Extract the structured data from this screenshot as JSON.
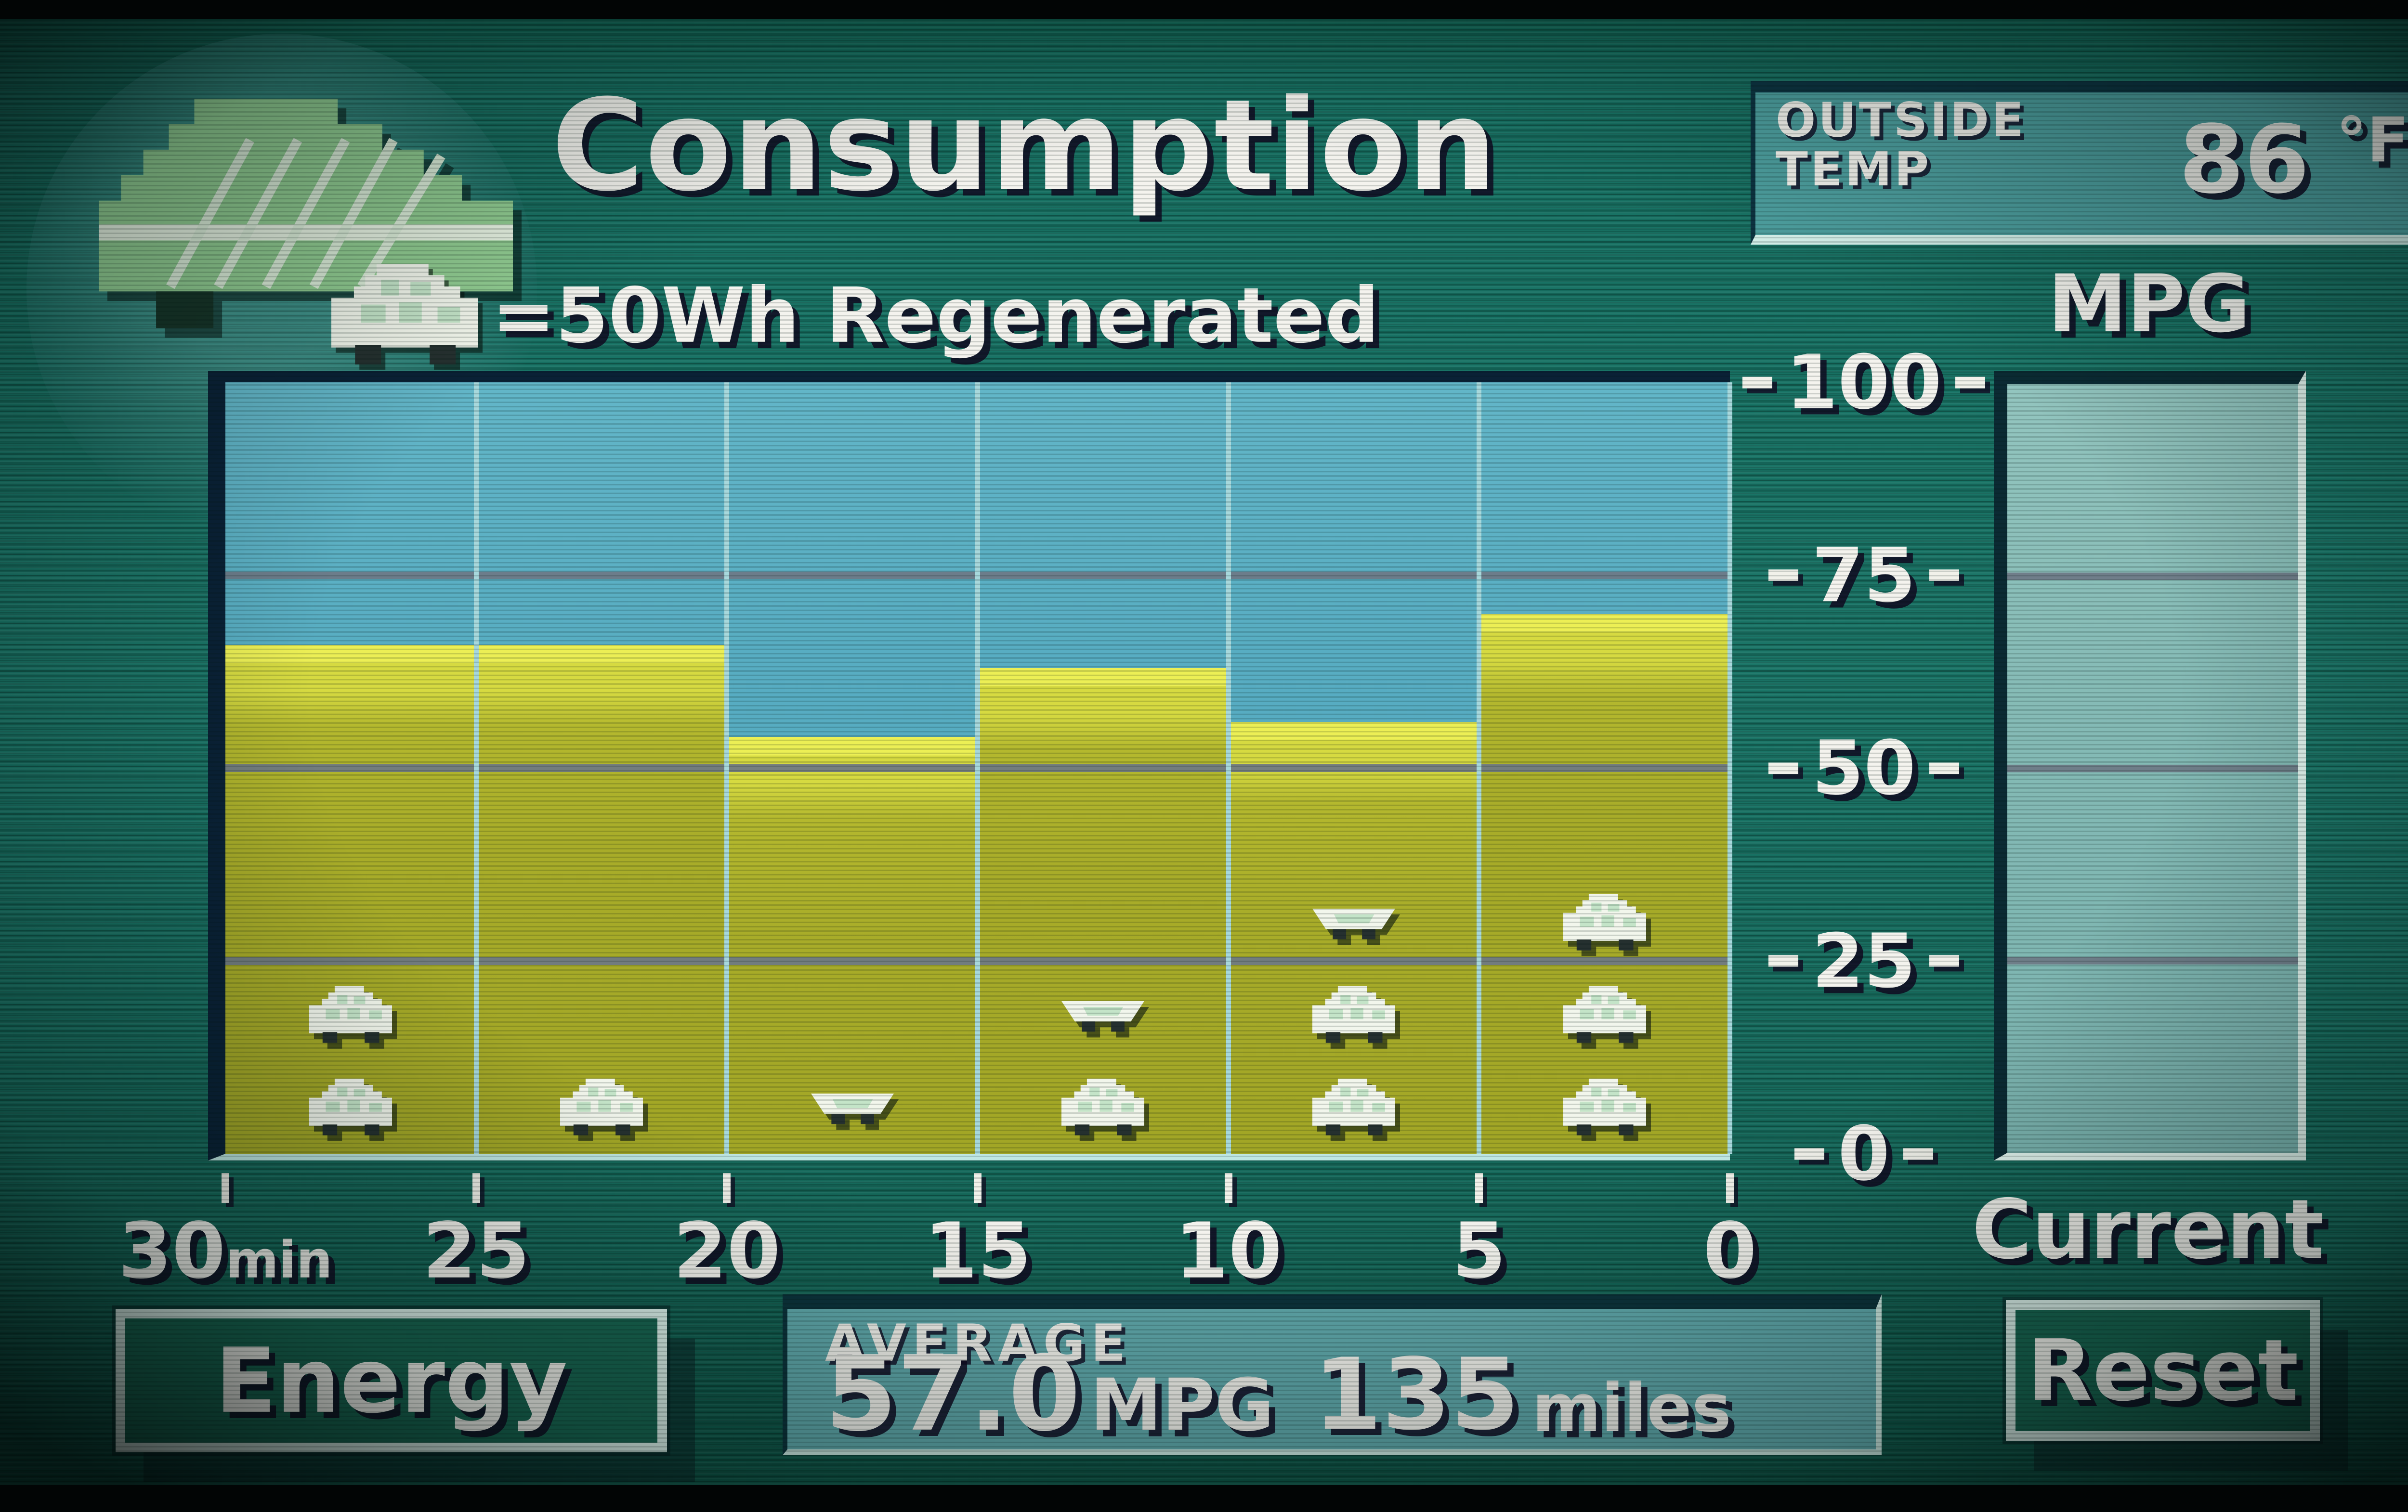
{
  "header": {
    "title": "Consumption",
    "legend_text": "=50Wh Regenerated",
    "outside_temp": {
      "line1": "OUTSIDE",
      "line2": "TEMP",
      "value": "86",
      "unit": "°F"
    }
  },
  "chart": {
    "mpg_label": "MPG"
  },
  "current": {
    "label": "Current"
  },
  "footer": {
    "energy_button": "Energy",
    "average_label": "AVERAGE",
    "average_value": "57.0",
    "average_unit": "MPG",
    "distance_value": "135",
    "distance_unit": "miles",
    "reset_button": "Reset"
  },
  "chart_data": {
    "type": "bar",
    "title": "Consumption",
    "ylabel": "MPG",
    "ylim": [
      0,
      100
    ],
    "yticks": [
      100,
      75,
      50,
      25,
      0
    ],
    "x_ticks": [
      "30",
      "25",
      "20",
      "15",
      "10",
      "5",
      "0"
    ],
    "x_unit": "min",
    "categories": [
      "30-25 min",
      "25-20 min",
      "20-15 min",
      "15-10 min",
      "10-5 min",
      "5-0 min"
    ],
    "values_mpg": [
      66,
      66,
      54,
      63,
      56,
      70
    ],
    "regen": {
      "per_car_wh": 50,
      "cars": [
        2,
        1,
        0.5,
        1.5,
        2.5,
        3
      ],
      "wh": [
        100,
        50,
        25,
        75,
        125,
        150
      ]
    },
    "current_bar_mpg": null,
    "grid": true,
    "legend_position": "top-left",
    "legend_note": "1 car icon = 50Wh regenerated"
  }
}
